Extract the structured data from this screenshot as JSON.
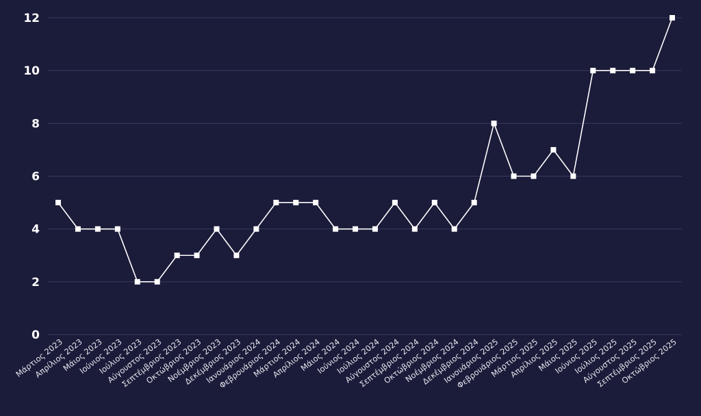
{
  "chart_data": {
    "type": "line",
    "title": "",
    "xlabel": "",
    "ylabel": "",
    "ylim": [
      0,
      12
    ],
    "yticks": [
      0,
      2,
      4,
      6,
      8,
      10,
      12
    ],
    "grid": "horizontal",
    "legend": "none",
    "colors": {
      "background": "#1b1b3a",
      "line": "#ffffff",
      "marker": "#ffffff",
      "grid": "#3a3a5e",
      "tick_text": "#e6e6ee"
    },
    "categories": [
      "Μάρτιος 2023",
      "Απρίλιος 2023",
      "Μάιος 2023",
      "Ιούνιος 2023",
      "Ιούλιος 2023",
      "Αύγουστος 2023",
      "Σεπτέμβριος 2023",
      "Οκτώβριος 2023",
      "Νοέμβριος 2023",
      "Δεκέμβριος 2023",
      "Ιανουάριος 2024",
      "Φεβρουάριος 2024",
      "Μάρτιος 2024",
      "Απρίλιος 2024",
      "Μάιος 2024",
      "Ιούνιος 2024",
      "Ιούλιος 2024",
      "Αύγουστος 2024",
      "Σεπτέμβριος 2024",
      "Οκτώβριος 2024",
      "Νοέμβριος 2024",
      "Δεκέμβριος 2024",
      "Ιανουάριος 2025",
      "Φεβρουάριος 2025",
      "Μάρτιος 2025",
      "Απρίλιος 2025",
      "Μάιος 2025",
      "Ιούνιος 2025",
      "Ιούλιος 2025",
      "Αύγουστος 2025",
      "Σεπτέμβριος 2025",
      "Οκτώβριος 2025"
    ],
    "series": [
      {
        "values": [
          5,
          4,
          4,
          4,
          2,
          2,
          3,
          3,
          4,
          3,
          4,
          5,
          5,
          5,
          4,
          4,
          4,
          5,
          4,
          5,
          4,
          5,
          8,
          6,
          6,
          7,
          6,
          10,
          10,
          10,
          10,
          12
        ]
      }
    ]
  }
}
